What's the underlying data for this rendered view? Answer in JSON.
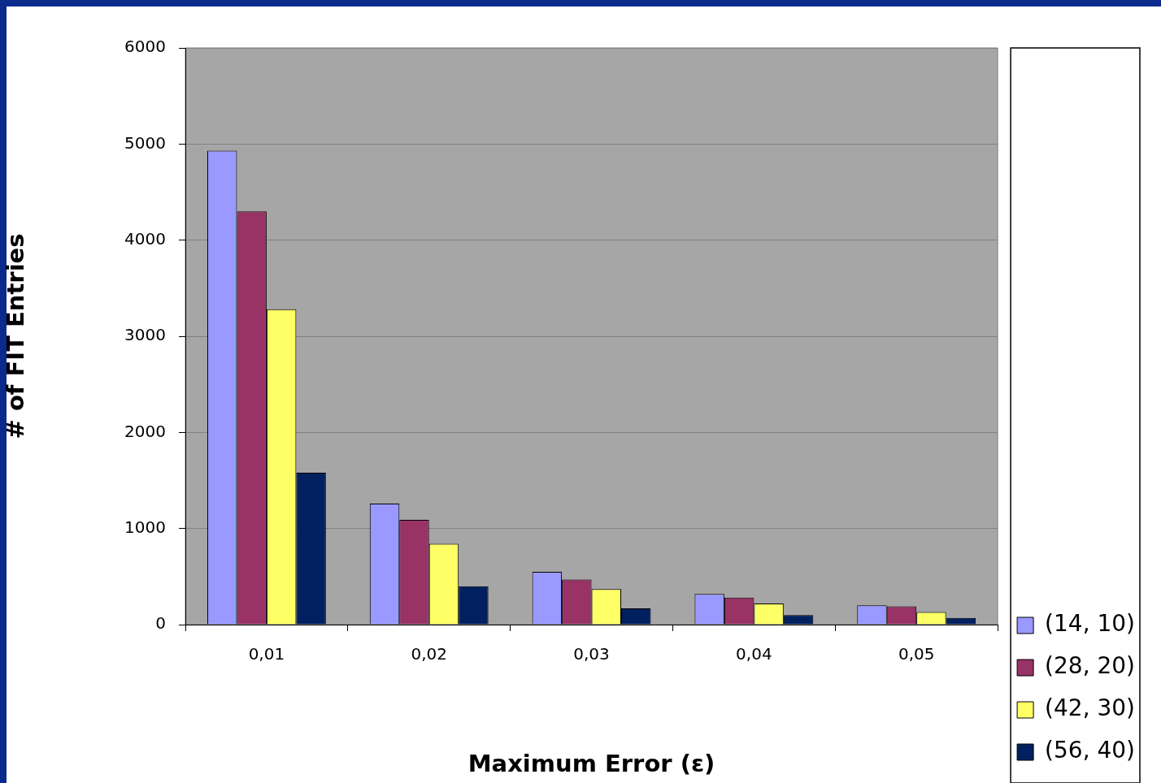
{
  "chart_data": {
    "type": "bar",
    "xlabel": "Maximum Error (ε)",
    "ylabel": "# of FIT Entries",
    "categories": [
      "0,01",
      "0,02",
      "0,03",
      "0,04",
      "0,05"
    ],
    "series": [
      {
        "name": "(14, 10)",
        "color": "#9999ff",
        "values": [
          4930,
          1260,
          550,
          320,
          200
        ]
      },
      {
        "name": "(28, 20)",
        "color": "#993366",
        "values": [
          4300,
          1090,
          470,
          280,
          190
        ]
      },
      {
        "name": "(42, 30)",
        "color": "#ffff66",
        "values": [
          3280,
          840,
          370,
          220,
          130
        ]
      },
      {
        "name": "(56, 40)",
        "color": "#002060",
        "values": [
          1580,
          400,
          170,
          100,
          70
        ]
      }
    ],
    "ylim": [
      0,
      6000
    ],
    "yticks": [
      0,
      1000,
      2000,
      3000,
      4000,
      5000,
      6000
    ],
    "grid": "y",
    "legend": "bottom right"
  }
}
